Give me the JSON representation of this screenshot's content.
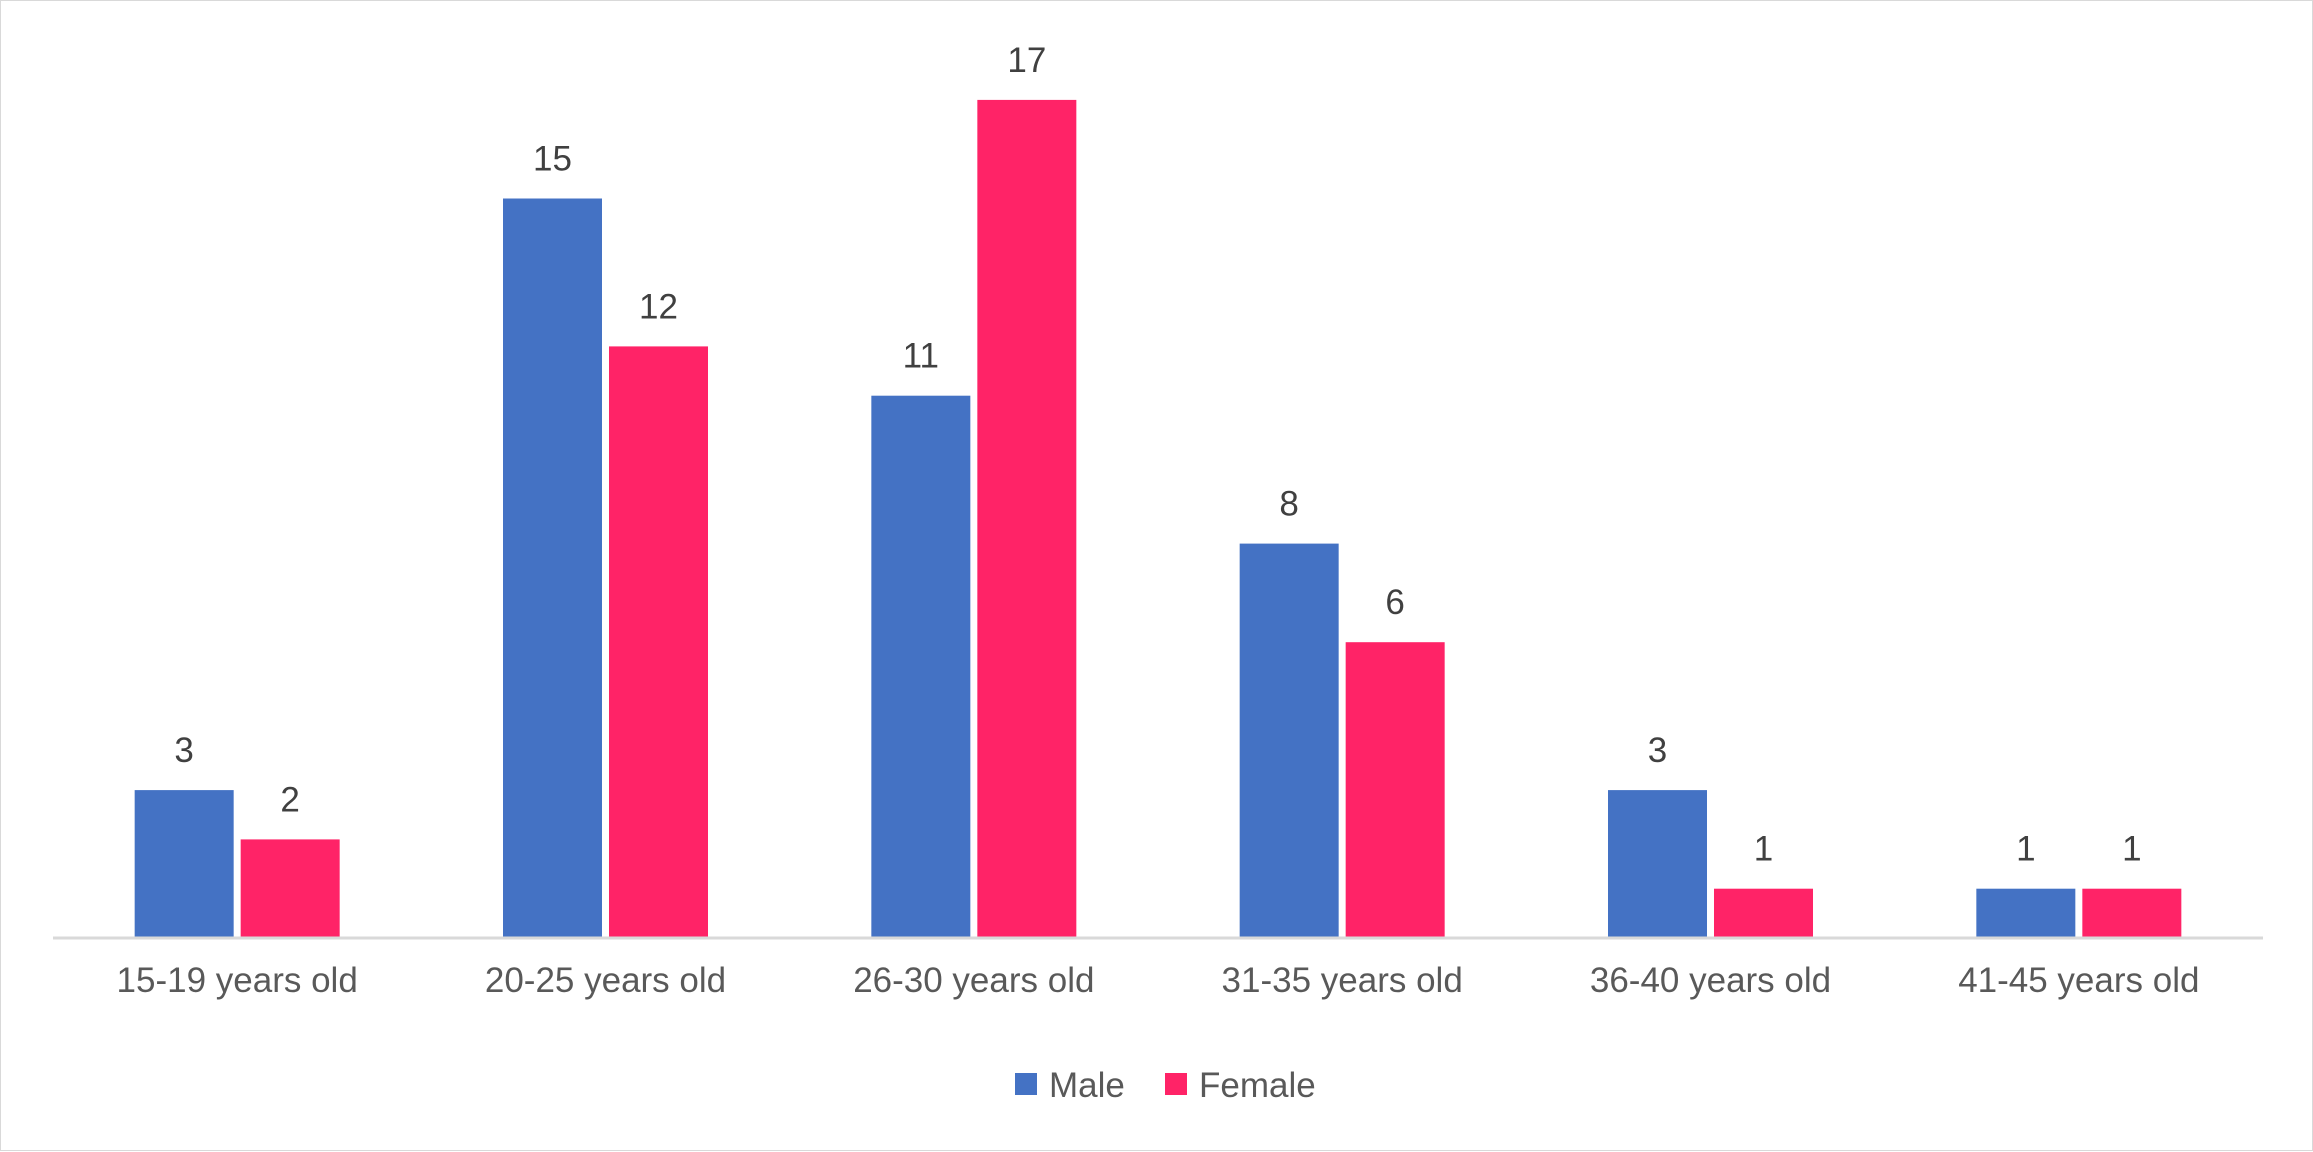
{
  "chart_data": {
    "type": "bar",
    "categories": [
      "15-19 years old",
      "20-25 years old",
      "26-30 years old",
      "31-35 years old",
      "36-40 years old",
      "41-45 years old"
    ],
    "series": [
      {
        "name": "Male",
        "color": "#4472c4",
        "values": [
          3,
          15,
          11,
          8,
          3,
          1
        ]
      },
      {
        "name": "Female",
        "color": "#ff2367",
        "values": [
          2,
          12,
          17,
          6,
          1,
          1
        ]
      }
    ],
    "title": "",
    "xlabel": "",
    "ylabel": "",
    "ylim": [
      0,
      17
    ],
    "grid": false,
    "legend": "bottom-center",
    "data_labels": true
  }
}
